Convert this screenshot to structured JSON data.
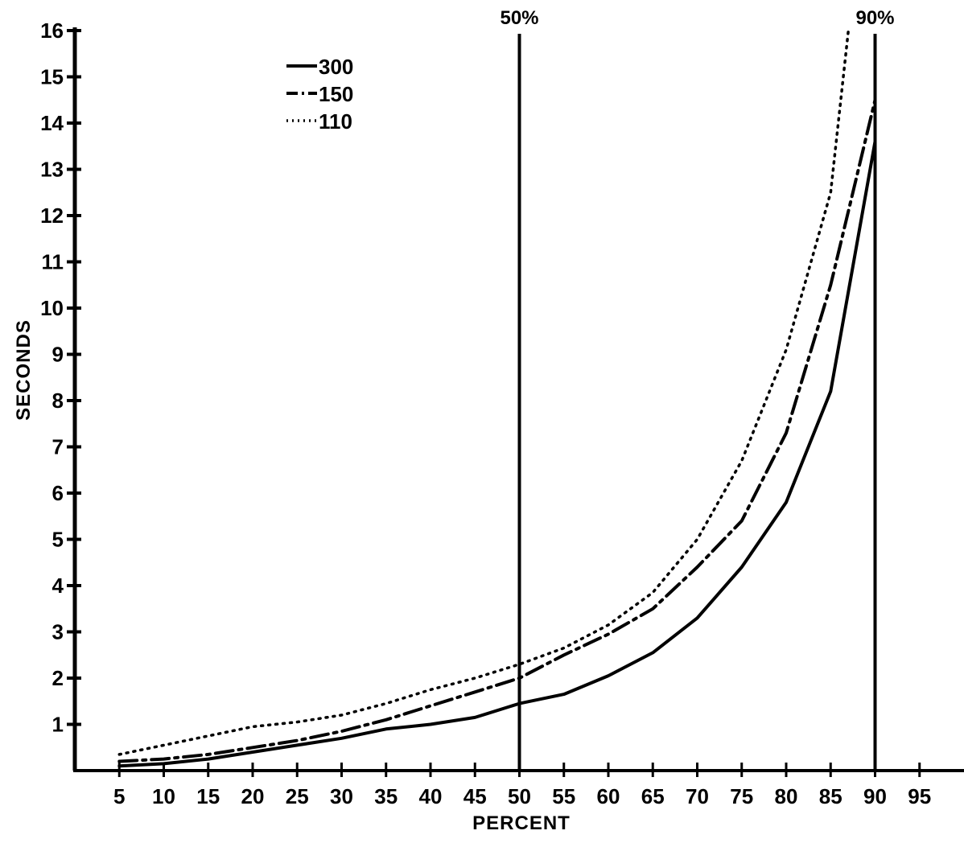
{
  "chart_data": {
    "type": "line",
    "xlabel": "PERCENT",
    "ylabel": "SECONDS",
    "xlim": [
      0,
      100
    ],
    "ylim": [
      0,
      16
    ],
    "x_ticks": [
      5,
      10,
      15,
      20,
      25,
      30,
      35,
      40,
      45,
      50,
      55,
      60,
      65,
      70,
      75,
      80,
      85,
      90,
      95
    ],
    "y_ticks": [
      1,
      2,
      3,
      4,
      5,
      6,
      7,
      8,
      9,
      10,
      11,
      12,
      13,
      14,
      15,
      16
    ],
    "grid": false,
    "legend_position": "top-left",
    "reference_lines": [
      {
        "x": 50,
        "label": "50%"
      },
      {
        "x": 90,
        "label": "90%"
      }
    ],
    "series": [
      {
        "name": "300",
        "line_style": "solid",
        "points": [
          [
            5,
            0.1
          ],
          [
            10,
            0.15
          ],
          [
            15,
            0.25
          ],
          [
            20,
            0.4
          ],
          [
            25,
            0.55
          ],
          [
            30,
            0.7
          ],
          [
            35,
            0.9
          ],
          [
            40,
            1.0
          ],
          [
            45,
            1.15
          ],
          [
            50,
            1.45
          ],
          [
            55,
            1.65
          ],
          [
            60,
            2.05
          ],
          [
            65,
            2.55
          ],
          [
            70,
            3.3
          ],
          [
            75,
            4.4
          ],
          [
            80,
            5.8
          ],
          [
            85,
            8.2
          ],
          [
            90,
            13.6
          ]
        ]
      },
      {
        "name": "150",
        "line_style": "dashdot",
        "points": [
          [
            5,
            0.2
          ],
          [
            10,
            0.25
          ],
          [
            15,
            0.35
          ],
          [
            20,
            0.5
          ],
          [
            25,
            0.65
          ],
          [
            30,
            0.85
          ],
          [
            35,
            1.1
          ],
          [
            40,
            1.4
          ],
          [
            45,
            1.7
          ],
          [
            50,
            2.0
          ],
          [
            55,
            2.5
          ],
          [
            60,
            2.95
          ],
          [
            65,
            3.5
          ],
          [
            70,
            4.4
          ],
          [
            75,
            5.4
          ],
          [
            80,
            7.3
          ],
          [
            85,
            10.5
          ],
          [
            90,
            14.5
          ]
        ]
      },
      {
        "name": "110",
        "line_style": "dotted",
        "points": [
          [
            5,
            0.35
          ],
          [
            10,
            0.55
          ],
          [
            15,
            0.75
          ],
          [
            20,
            0.95
          ],
          [
            25,
            1.05
          ],
          [
            30,
            1.2
          ],
          [
            35,
            1.45
          ],
          [
            40,
            1.75
          ],
          [
            45,
            2.0
          ],
          [
            50,
            2.3
          ],
          [
            55,
            2.65
          ],
          [
            60,
            3.15
          ],
          [
            65,
            3.85
          ],
          [
            70,
            5.0
          ],
          [
            75,
            6.7
          ],
          [
            80,
            9.1
          ],
          [
            85,
            12.5
          ],
          [
            87,
            16.0
          ]
        ]
      }
    ]
  }
}
